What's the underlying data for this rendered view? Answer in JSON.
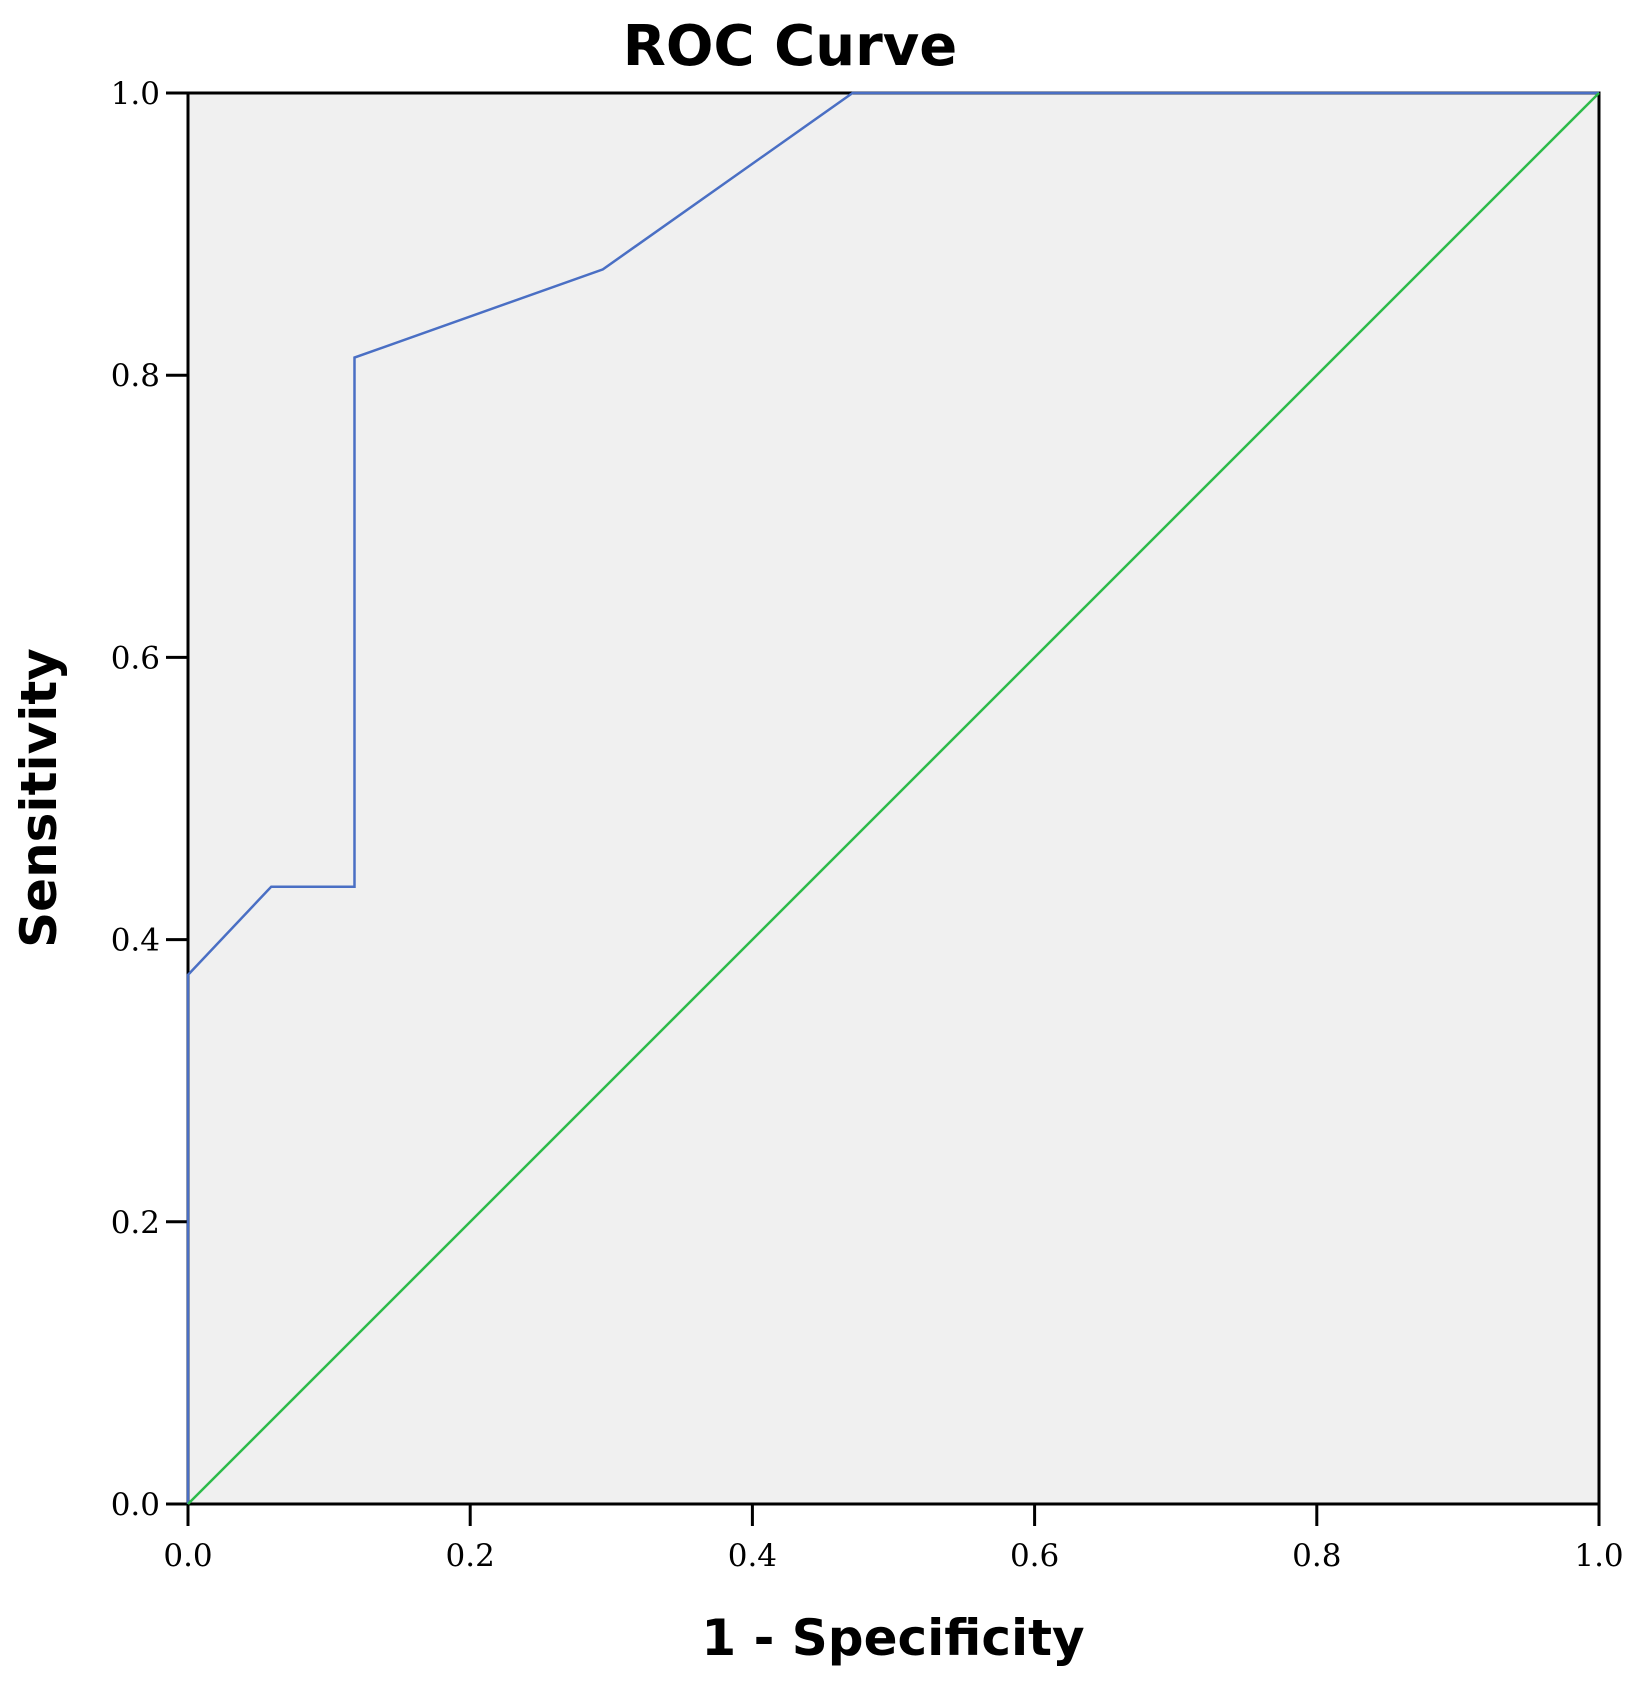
{
  "chart_data": {
    "type": "line",
    "title": "ROC Curve",
    "xlabel": "1 - Specificity",
    "ylabel": "Sensitivity",
    "xlim": [
      0,
      1
    ],
    "ylim": [
      0,
      1
    ],
    "xticks": [
      "0.0",
      "0.2",
      "0.4",
      "0.6",
      "0.8",
      "1.0"
    ],
    "yticks": [
      "0.0",
      "0.2",
      "0.4",
      "0.6",
      "0.8",
      "1.0"
    ],
    "grid": false,
    "background_color": "#f0f0f0",
    "series": [
      {
        "color": "#4a6fc4",
        "points": [
          [
            0.0,
            0.0
          ],
          [
            0.0,
            0.375
          ],
          [
            0.059,
            0.4375
          ],
          [
            0.118,
            0.4375
          ],
          [
            0.118,
            0.8125
          ],
          [
            0.294,
            0.875
          ],
          [
            0.471,
            1.0
          ],
          [
            1.0,
            1.0
          ]
        ]
      },
      {
        "color": "#2dbb4a",
        "points": [
          [
            0.0,
            0.0
          ],
          [
            1.0,
            1.0
          ]
        ]
      }
    ]
  }
}
